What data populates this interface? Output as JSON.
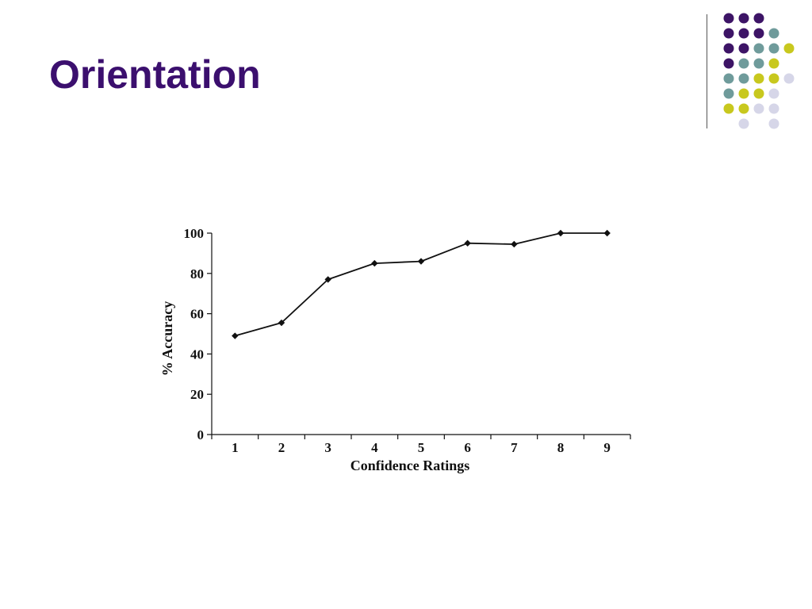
{
  "slide": {
    "title": "Orientation"
  },
  "colors": {
    "title": "#3b0f6e",
    "dot_purple": "#3d1466",
    "dot_teal": "#6f9b9b",
    "dot_yellow": "#c8c81e",
    "dot_lavender": "#d6d6e8",
    "line": "#111111"
  },
  "decoration": {
    "dot_rows": [
      [
        "purple",
        "purple",
        "purple",
        "",
        ""
      ],
      [
        "purple",
        "purple",
        "purple",
        "teal",
        ""
      ],
      [
        "purple",
        "purple",
        "teal",
        "teal",
        "yellow"
      ],
      [
        "purple",
        "teal",
        "teal",
        "yellow",
        ""
      ],
      [
        "teal",
        "teal",
        "yellow",
        "yellow",
        "lavender"
      ],
      [
        "teal",
        "yellow",
        "yellow",
        "lavender",
        ""
      ],
      [
        "yellow",
        "yellow",
        "lavender",
        "lavender",
        ""
      ],
      [
        "",
        "lavender",
        "",
        "lavender",
        ""
      ]
    ]
  },
  "chart_data": {
    "type": "line",
    "xlabel": "Confidence Ratings",
    "ylabel": "% Accuracy",
    "x": [
      1,
      2,
      3,
      4,
      5,
      6,
      7,
      8,
      9
    ],
    "x_tick_labels": [
      "1",
      "2",
      "3",
      "4",
      "5",
      "6",
      "7",
      "8",
      "9"
    ],
    "xlim": [
      0.5,
      9.5
    ],
    "ylim": [
      0,
      100
    ],
    "y_ticks": [
      0,
      20,
      40,
      60,
      80,
      100
    ],
    "y_tick_labels": [
      "0",
      "20",
      "40",
      "60",
      "80",
      "100"
    ],
    "series": [
      {
        "values": [
          49,
          55.5,
          77,
          85,
          86,
          95,
          94.5,
          100,
          100
        ]
      }
    ],
    "grid": false,
    "legend": "none",
    "marker": "diamond"
  }
}
